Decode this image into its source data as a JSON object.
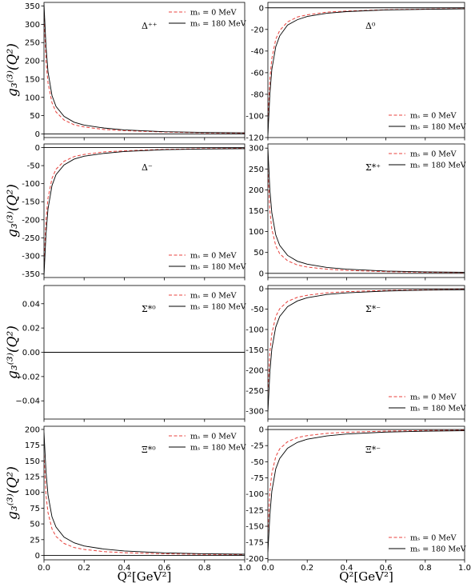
{
  "figure": {
    "ylabel": "g₃⁽³⁾(Q²)",
    "xlabel": "Q²[GeV²]"
  },
  "chart_data": [
    {
      "type": "line",
      "panel_label": "Δ⁺⁺",
      "xlim": [
        0,
        1
      ],
      "ylim": [
        -10,
        360
      ],
      "yticks": [
        0,
        50,
        100,
        150,
        200,
        250,
        300,
        350
      ],
      "xticks": [
        0,
        0.2,
        0.4,
        0.6,
        0.8,
        1.0
      ],
      "legend_position": "upper-right",
      "series": [
        {
          "name": "mₛ = 0 MeV",
          "color": "#e8413c",
          "dash": true,
          "x": [
            0,
            0.01,
            0.02,
            0.04,
            0.06,
            0.1,
            0.15,
            0.2,
            0.3,
            0.4,
            0.6,
            0.8,
            1.0
          ],
          "values": [
            330,
            200,
            140,
            85,
            60,
            38,
            25,
            19,
            12,
            9,
            5,
            3,
            2
          ]
        },
        {
          "name": "mₛ = 180 MeV",
          "color": "#000000",
          "dash": false,
          "x": [
            0,
            0.01,
            0.02,
            0.04,
            0.06,
            0.1,
            0.15,
            0.2,
            0.3,
            0.4,
            0.6,
            0.8,
            1.0
          ],
          "values": [
            355,
            240,
            170,
            105,
            75,
            48,
            32,
            24,
            16,
            11,
            6,
            4,
            3
          ]
        }
      ]
    },
    {
      "type": "line",
      "panel_label": "Δ⁰",
      "xlim": [
        0,
        1
      ],
      "ylim": [
        -120,
        5
      ],
      "yticks": [
        0,
        -20,
        -40,
        -60,
        -80,
        -100,
        -120
      ],
      "xticks": [
        0,
        0.2,
        0.4,
        0.6,
        0.8,
        1.0
      ],
      "legend_position": "lower-right",
      "series": [
        {
          "name": "mₛ = 0 MeV",
          "color": "#e8413c",
          "dash": true,
          "x": [
            0,
            0.01,
            0.02,
            0.04,
            0.06,
            0.1,
            0.15,
            0.2,
            0.3,
            0.4,
            0.6,
            0.8,
            1.0
          ],
          "values": [
            -105,
            -66,
            -47,
            -29,
            -21,
            -13,
            -8.5,
            -6.5,
            -4,
            -3,
            -1.8,
            -1.2,
            -0.8
          ]
        },
        {
          "name": "mₛ = 180 MeV",
          "color": "#000000",
          "dash": false,
          "x": [
            0,
            0.01,
            0.02,
            0.04,
            0.06,
            0.1,
            0.15,
            0.2,
            0.3,
            0.4,
            0.6,
            0.8,
            1.0
          ],
          "values": [
            -118,
            -80,
            -57,
            -36,
            -26,
            -16,
            -11,
            -8,
            -5,
            -3.5,
            -2,
            -1.4,
            -1
          ]
        }
      ]
    },
    {
      "type": "line",
      "panel_label": "Δ⁻",
      "xlim": [
        0,
        1
      ],
      "ylim": [
        -360,
        10
      ],
      "yticks": [
        0,
        -50,
        -100,
        -150,
        -200,
        -250,
        -300,
        -350
      ],
      "xticks": [
        0,
        0.2,
        0.4,
        0.6,
        0.8,
        1.0
      ],
      "legend_position": "lower-right",
      "series": [
        {
          "name": "mₛ = 0 MeV",
          "color": "#e8413c",
          "dash": true,
          "x": [
            0,
            0.01,
            0.02,
            0.04,
            0.06,
            0.1,
            0.15,
            0.2,
            0.3,
            0.4,
            0.6,
            0.8,
            1.0
          ],
          "values": [
            -330,
            -200,
            -140,
            -85,
            -60,
            -38,
            -25,
            -19,
            -12,
            -9,
            -5,
            -3,
            -2
          ]
        },
        {
          "name": "mₛ = 180 MeV",
          "color": "#000000",
          "dash": false,
          "x": [
            0,
            0.01,
            0.02,
            0.04,
            0.06,
            0.1,
            0.15,
            0.2,
            0.3,
            0.4,
            0.6,
            0.8,
            1.0
          ],
          "values": [
            -355,
            -240,
            -170,
            -105,
            -75,
            -48,
            -32,
            -24,
            -16,
            -11,
            -6,
            -4,
            -3
          ]
        }
      ]
    },
    {
      "type": "line",
      "panel_label": "Σ*⁺",
      "xlim": [
        0,
        1
      ],
      "ylim": [
        -10,
        310
      ],
      "yticks": [
        0,
        50,
        100,
        150,
        200,
        250,
        300
      ],
      "xticks": [
        0,
        0.2,
        0.4,
        0.6,
        0.8,
        1.0
      ],
      "legend_position": "upper-right",
      "series": [
        {
          "name": "mₛ = 0 MeV",
          "color": "#e8413c",
          "dash": true,
          "x": [
            0,
            0.01,
            0.02,
            0.04,
            0.06,
            0.1,
            0.15,
            0.2,
            0.3,
            0.4,
            0.6,
            0.8,
            1.0
          ],
          "values": [
            250,
            150,
            106,
            66,
            47,
            30,
            20,
            15,
            10,
            7,
            4,
            2.5,
            1.8
          ]
        },
        {
          "name": "mₛ = 180 MeV",
          "color": "#000000",
          "dash": false,
          "x": [
            0,
            0.01,
            0.02,
            0.04,
            0.06,
            0.1,
            0.15,
            0.2,
            0.3,
            0.4,
            0.6,
            0.8,
            1.0
          ],
          "values": [
            300,
            200,
            145,
            92,
            67,
            43,
            29,
            22,
            14,
            10,
            5.5,
            3.5,
            2.5
          ]
        }
      ]
    },
    {
      "type": "line",
      "panel_label": "Σ*⁰",
      "xlim": [
        0,
        1
      ],
      "ylim": [
        -0.055,
        0.055
      ],
      "yticks": [
        0.04,
        0.02,
        0.0,
        -0.02,
        -0.04
      ],
      "ytick_labels": [
        "0.04",
        "0.02",
        "0.00",
        "−0.02",
        "−0.04"
      ],
      "xticks": [
        0,
        0.2,
        0.4,
        0.6,
        0.8,
        1.0
      ],
      "legend_position": "upper-right",
      "series": [
        {
          "name": "mₛ = 0 MeV",
          "color": "#e8413c",
          "dash": true,
          "x": [
            0,
            1
          ],
          "values": [
            0,
            0
          ]
        },
        {
          "name": "mₛ = 180 MeV",
          "color": "#000000",
          "dash": false,
          "x": [
            0,
            1
          ],
          "values": [
            0,
            0
          ]
        }
      ]
    },
    {
      "type": "line",
      "panel_label": "Σ*⁻",
      "xlim": [
        0,
        1
      ],
      "ylim": [
        -320,
        8
      ],
      "yticks": [
        0,
        -50,
        -100,
        -150,
        -200,
        -250,
        -300
      ],
      "xticks": [
        0,
        0.2,
        0.4,
        0.6,
        0.8,
        1.0
      ],
      "legend_position": "lower-right",
      "series": [
        {
          "name": "mₛ = 0 MeV",
          "color": "#e8413c",
          "dash": true,
          "x": [
            0,
            0.01,
            0.02,
            0.04,
            0.06,
            0.1,
            0.15,
            0.2,
            0.3,
            0.4,
            0.6,
            0.8,
            1.0
          ],
          "values": [
            -255,
            -155,
            -110,
            -68,
            -49,
            -31,
            -21,
            -16,
            -10,
            -7,
            -4,
            -2.6,
            -1.8
          ]
        },
        {
          "name": "mₛ = 180 MeV",
          "color": "#000000",
          "dash": false,
          "x": [
            0,
            0.01,
            0.02,
            0.04,
            0.06,
            0.1,
            0.15,
            0.2,
            0.3,
            0.4,
            0.6,
            0.8,
            1.0
          ],
          "values": [
            -303,
            -205,
            -148,
            -94,
            -68,
            -44,
            -30,
            -22,
            -14,
            -10,
            -5.5,
            -3.5,
            -2.5
          ]
        }
      ]
    },
    {
      "type": "line",
      "panel_label": "Ξ*⁰",
      "xlim": [
        0,
        1
      ],
      "ylim": [
        -7,
        205
      ],
      "yticks": [
        0,
        25,
        50,
        75,
        100,
        125,
        150,
        175,
        200
      ],
      "xticks": [
        0,
        0.2,
        0.4,
        0.6,
        0.8,
        1.0
      ],
      "xtick_labels": [
        "0.0",
        "0.2",
        "0.4",
        "0.6",
        "0.8",
        "1.0"
      ],
      "legend_position": "upper-right",
      "series": [
        {
          "name": "mₛ = 0 MeV",
          "color": "#e8413c",
          "dash": true,
          "x": [
            0,
            0.01,
            0.02,
            0.04,
            0.06,
            0.1,
            0.15,
            0.2,
            0.3,
            0.4,
            0.6,
            0.8,
            1.0
          ],
          "values": [
            160,
            96,
            68,
            42,
            30,
            19,
            12.5,
            9.5,
            6,
            4.3,
            2.5,
            1.6,
            1.2
          ]
        },
        {
          "name": "mₛ = 180 MeV",
          "color": "#000000",
          "dash": false,
          "x": [
            0,
            0.01,
            0.02,
            0.04,
            0.06,
            0.1,
            0.15,
            0.2,
            0.3,
            0.4,
            0.6,
            0.8,
            1.0
          ],
          "values": [
            195,
            133,
            96,
            61,
            45,
            29,
            20,
            15,
            10,
            7,
            4,
            2.6,
            1.9
          ]
        }
      ]
    },
    {
      "type": "line",
      "panel_label": "Ξ*⁻",
      "xlim": [
        0,
        1
      ],
      "ylim": [
        -202,
        5
      ],
      "yticks": [
        0,
        -25,
        -50,
        -75,
        -100,
        -125,
        -150,
        -175,
        -200
      ],
      "xticks": [
        0,
        0.2,
        0.4,
        0.6,
        0.8,
        1.0
      ],
      "xtick_labels": [
        "0.0",
        "0.2",
        "0.4",
        "0.6",
        "0.8",
        "1.0"
      ],
      "legend_position": "lower-right",
      "series": [
        {
          "name": "mₛ = 0 MeV",
          "color": "#e8413c",
          "dash": true,
          "x": [
            0,
            0.01,
            0.02,
            0.04,
            0.06,
            0.1,
            0.15,
            0.2,
            0.3,
            0.4,
            0.6,
            0.8,
            1.0
          ],
          "values": [
            -160,
            -96,
            -68,
            -42,
            -30,
            -19,
            -12.5,
            -9.5,
            -6,
            -4.3,
            -2.5,
            -1.6,
            -1.2
          ]
        },
        {
          "name": "mₛ = 180 MeV",
          "color": "#000000",
          "dash": false,
          "x": [
            0,
            0.01,
            0.02,
            0.04,
            0.06,
            0.1,
            0.15,
            0.2,
            0.3,
            0.4,
            0.6,
            0.8,
            1.0
          ],
          "values": [
            -190,
            -133,
            -96,
            -61,
            -45,
            -29,
            -20,
            -15,
            -10,
            -7,
            -4,
            -2.6,
            -1.9
          ]
        }
      ]
    }
  ]
}
